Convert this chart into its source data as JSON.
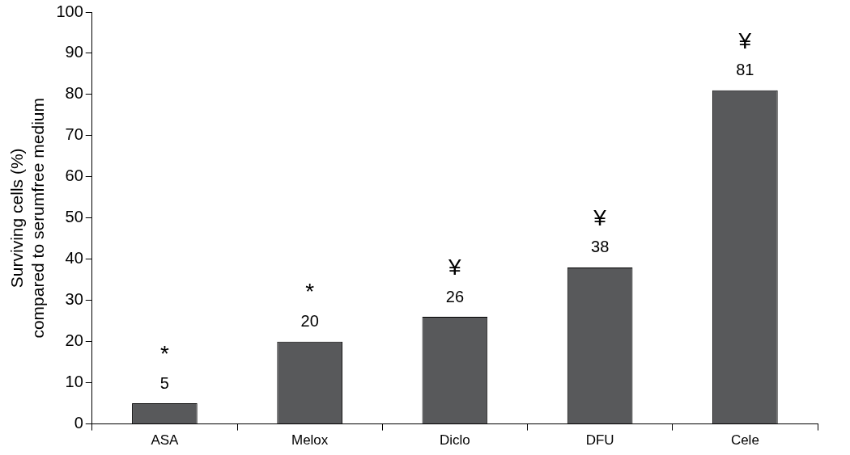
{
  "chart_data": {
    "type": "bar",
    "ylabel": "Surviving cells (%)\ncompared to serumfree medium",
    "categories": [
      "ASA",
      "Melox",
      "Diclo",
      "DFU",
      "Cele"
    ],
    "values": [
      5,
      20,
      26,
      38,
      81
    ],
    "color": "#58595b",
    "ylim": [
      0,
      100
    ],
    "yticks": [
      0,
      10,
      20,
      30,
      40,
      50,
      60,
      70,
      80,
      90,
      100
    ],
    "grid": false,
    "legend": false,
    "data_labels": true,
    "annotations": [
      "*",
      "*",
      "¥",
      "¥",
      "¥"
    ]
  }
}
